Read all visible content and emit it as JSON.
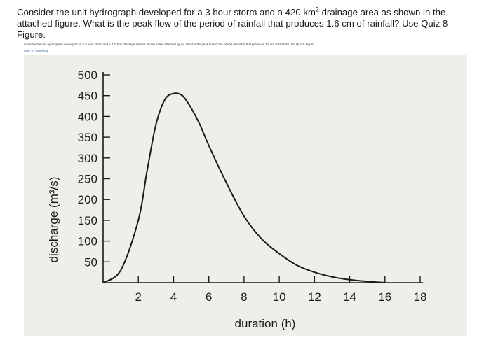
{
  "question": {
    "text_before": "Consider the unit hydrograph developed for a 3 hour storm and a 420 km",
    "superscript": "2",
    "text_after": " drainage area as shown in the attached figure. What is the peak flow of the period of rainfall that produces 1.6 cm of rainfall? Use Quiz 8 Figure.",
    "tiny_repeat": "Consider the unit hydrograph developed for a 3 hour storm and a 420 km² drainage area as shown in the attached figure. What is the peak flow of the period of rainfall that produces 1.6 cm of rainfall? Use Quiz 8 Figure.",
    "attachment_label": "Quiz 8 Figure.jpg"
  },
  "chart_data": {
    "type": "line",
    "title": "",
    "xlabel": "duration (h)",
    "ylabel": "discharge (m³/s)",
    "xlim": [
      0,
      18
    ],
    "ylim": [
      0,
      500
    ],
    "x_ticks": [
      2,
      4,
      6,
      8,
      10,
      12,
      14,
      16,
      18
    ],
    "y_ticks": [
      50,
      100,
      150,
      200,
      250,
      300,
      350,
      400,
      450,
      500
    ],
    "series": [
      {
        "x": [
          0,
          1,
          2,
          2.5,
          3,
          3.5,
          4,
          4.5,
          5,
          5.5,
          6,
          7,
          8,
          9,
          10,
          11,
          12,
          13,
          14,
          15,
          16
        ],
        "y": [
          0,
          30,
          150,
          270,
          380,
          440,
          455,
          450,
          420,
          380,
          330,
          240,
          160,
          105,
          70,
          42,
          25,
          14,
          7,
          3,
          0
        ]
      }
    ],
    "grid": false,
    "line_color": "#1a1a1a"
  }
}
